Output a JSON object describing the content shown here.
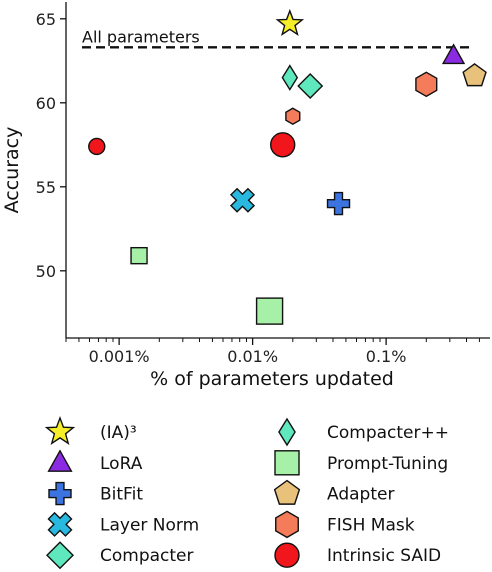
{
  "chart_data": {
    "type": "scatter",
    "title": "",
    "xlabel": "% of parameters updated",
    "ylabel": "Accuracy",
    "x_scale": "log",
    "xlim": [
      0.0004,
      0.6
    ],
    "ylim": [
      46,
      66
    ],
    "x_ticks": [
      0.001,
      0.01,
      0.1
    ],
    "x_tick_labels": [
      "0.001%",
      "0.01%",
      "0.1%"
    ],
    "y_ticks": [
      50,
      55,
      60,
      65
    ],
    "y_tick_labels": [
      "50",
      "55",
      "60",
      "65"
    ],
    "grid": false,
    "reference_line": {
      "label": "All parameters",
      "y": 63.3,
      "style": "dashed"
    },
    "legend_position": "bottom",
    "series": [
      {
        "name": "(IA)³",
        "marker": "star",
        "color": "#f7ee2a",
        "points": [
          {
            "x": 0.019,
            "y": 64.7
          }
        ]
      },
      {
        "name": "LoRA",
        "marker": "triangle",
        "color": "#8a2be2",
        "points": [
          {
            "x": 0.32,
            "y": 62.8
          }
        ]
      },
      {
        "name": "BitFit",
        "marker": "plus",
        "color": "#3b73e0",
        "points": [
          {
            "x": 0.044,
            "y": 54.0
          }
        ]
      },
      {
        "name": "Layer Norm",
        "marker": "x",
        "color": "#29b8e0",
        "points": [
          {
            "x": 0.0084,
            "y": 54.2
          }
        ]
      },
      {
        "name": "Compacter",
        "marker": "diamond",
        "color": "#5fe8bd",
        "points": [
          {
            "x": 0.027,
            "y": 61.0
          }
        ]
      },
      {
        "name": "Compacter++",
        "marker": "thin-diamond",
        "color": "#5fe8bd",
        "points": [
          {
            "x": 0.019,
            "y": 61.5
          }
        ]
      },
      {
        "name": "Prompt-Tuning",
        "marker": "square",
        "color": "#a6f0a8",
        "points": [
          {
            "x": 0.00141,
            "y": 50.9
          },
          {
            "x": 0.0134,
            "y": 47.6
          }
        ]
      },
      {
        "name": "Adapter",
        "marker": "pentagon",
        "color": "#e8c17a",
        "points": [
          {
            "x": 0.46,
            "y": 61.6
          }
        ]
      },
      {
        "name": "FISH Mask",
        "marker": "hexagon",
        "color": "#f57c5a",
        "points": [
          {
            "x": 0.2,
            "y": 61.1
          },
          {
            "x": 0.02,
            "y": 59.2
          }
        ]
      },
      {
        "name": "Intrinsic SAID",
        "marker": "circle",
        "color": "#f0161c",
        "points": [
          {
            "x": 0.00068,
            "y": 57.4
          },
          {
            "x": 0.0168,
            "y": 57.5
          }
        ]
      }
    ],
    "legend": {
      "left": [
        "(IA)³",
        "LoRA",
        "BitFit",
        "Layer Norm",
        "Compacter"
      ],
      "right": [
        "Compacter++",
        "Prompt-Tuning",
        "Adapter",
        "FISH Mask",
        "Intrinsic SAID"
      ]
    }
  }
}
